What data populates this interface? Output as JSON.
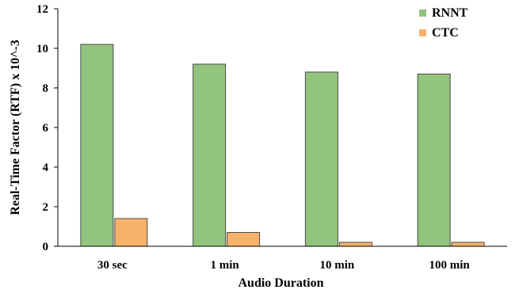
{
  "chart_data": {
    "type": "bar",
    "categories": [
      "30 sec",
      "1 min",
      "10 min",
      "100 min"
    ],
    "series": [
      {
        "name": "RNNT",
        "values": [
          10.2,
          9.2,
          8.8,
          8.7
        ],
        "color": "#93c47d",
        "stroke": "#4a4a4a"
      },
      {
        "name": "CTC",
        "values": [
          1.4,
          0.7,
          0.2,
          0.2
        ],
        "color": "#f6b26b",
        "stroke": "#4a4a4a"
      }
    ],
    "title": "",
    "xlabel": "Audio Duration",
    "ylabel": "Real-Time Factor (RTF) x 10^-3",
    "ylim": [
      0,
      12
    ],
    "yticks": [
      0,
      2,
      4,
      6,
      8,
      10,
      12
    ],
    "grid": false,
    "legend_position": "top-right"
  }
}
